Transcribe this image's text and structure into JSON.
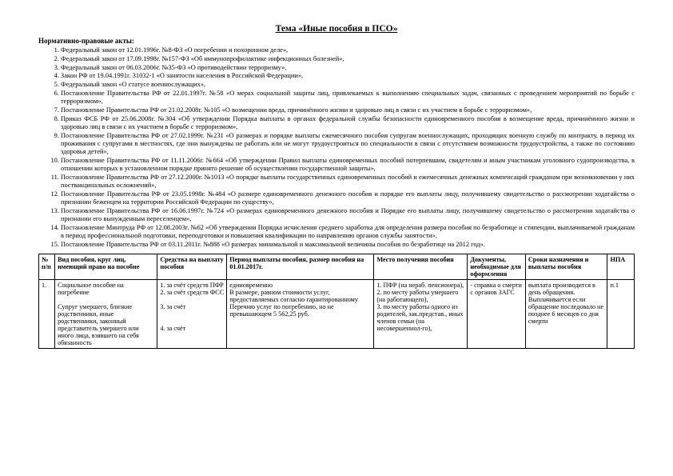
{
  "title": "Тема «Иные пособия в ПСО»",
  "subhead": "Нормативно-правовые акты:",
  "laws": [
    "Федеральный закон от 12.01.1996г. №8-ФЗ «О погребении и похоронном деле»,",
    "Федеральный закон от 17.09.1998г. №157-ФЗ «Об иммунопрофилактике инфекционных болезней»,",
    "Федеральный закон от 06.03.2006г. №35-ФЗ «О противодействии терроризму»,",
    "Закон РФ от 19.04.1991г. 31032-1 «О занятости населения в Российской Федерации»,",
    "Федеральный закон «О статусе военнослужащих»,",
    "Постановление Правительства РФ от 22.01.1997г. №58 «О мерах социальной защиты лиц, привлекаемых к выполнению специальных задач, связанных с проведением мероприятий по борьбе с терроризмом»,",
    "Постановление Правительства РФ от 21.02.2008г. №105 «О возмещении вреда, причинённого жизни и здоровью лиц в связи с их участием в борьбе с терроризмом»,",
    "Приказ ФСБ РФ от 25.06.2008г. №304 «Об утверждении Порядка выплаты в органах федеральной службы безопасности единовременного пособия в возмещение вреда, причинённого жизни и здоровью лиц в связи с их участием в борьбе с терроризмом»,",
    "Постановление Правительства РФ от 27.02.1999г. №231 «О размерах и порядке выплаты ежемесячного пособия супругам военнослужащих, проходящих военную службу по контракту, в период их проживания с супругами в местностях, где они вынуждены не работать или не могут трудоустроиться по специальности в связи с отсутствием возможности трудоустройства, а также по состоянию здоровья детей»,",
    "Постановление Правительства РФ от 11.11.2006г. №664 «Об утверждении Правил выплаты единовременных пособий потерпевшим, свидетелям и иным участникам уголовного судопроизводства, в отношении которых в установленном порядке принято решение об осуществлении государственной защиты»,",
    "Постановление Правительства РФ от 27.12.2000г. №1013 «О порядке выплаты государственных единовременных пособий и ежемесячных денежных компенсаций гражданам при возникновении у них поствакцинальных осложнений»,",
    "Постановление Правительства РФ от 23.05.1998г. №484 «О размере единовременного денежного пособия и порядке его выплаты лицу, получившему свидетельство о рассмотрении ходатайства о признании беженцем на территории Российской Федерации по существу»,",
    "Постановление Правительства РФ от 16.06.1997г. №724 «О размерах единовременного денежного пособия и Порядке его выплаты лицу, получившему свидетельство о рассмотрении ходатайства о признании его вынужденным переселенцем»,",
    "Постановление Минтруда РФ от 12.08.2003г. №62 «Об утверждении Порядка исчисления среднего заработка для определения размера пособия по безработице и стипендии, выплачиваемой гражданам в период профессиональной подготовки, переподготовки и повышения квалификации по направлению органов службы занятости»,",
    "Постановление Правительства РФ от 03.11.2011г. №888 «О размерах минимальной и максимальной величины пособия по безработице на 2012 год»."
  ],
  "headers": {
    "n": "№ п/п",
    "kind": "Вид пособия, круг лиц, имеющий право на пособие",
    "src": "Средства на выплату пособия",
    "per": "Период выплаты пособия, размер пособия на 01.01.2017г.",
    "loc": "Место получения пособия",
    "doc": "Документы, необходимые для оформления",
    "term": "Сроки назначения и выплаты пособия",
    "npa": "НПА"
  },
  "row1": {
    "n": "1.",
    "kind": "Социальное пособие на погребение\n\nСупруг умершего, близкие родственники, иные родственники, законный представитель умершего или иного лица, взявшего на себя обязанность",
    "src": "1. за счёт средств ПФР\n2. за счёт средств ФСС\n\n3. за счёт\n\n\n4. за счёт",
    "per": "единовременно\nВ размере, равном стоимости услуг, предоставляемых согласно гарантированному Перечню услуг по погребению, но не превышающем 5 562,25 руб.",
    "loc": "1. ПФР (на нераб. пенсионера),\n2. по месту работы умершего (на работающего),\n3. по месту работы одного из родителей, зак.представ., иных членов семьи (на несовершеннол-го),",
    "doc": "- справка о смерти с органов ЗАГС",
    "term": "выплата производится в день обращения. Выплачивается если обращение последовало не позднее 6 месяцев со дня смерти",
    "npa": "п.1"
  }
}
